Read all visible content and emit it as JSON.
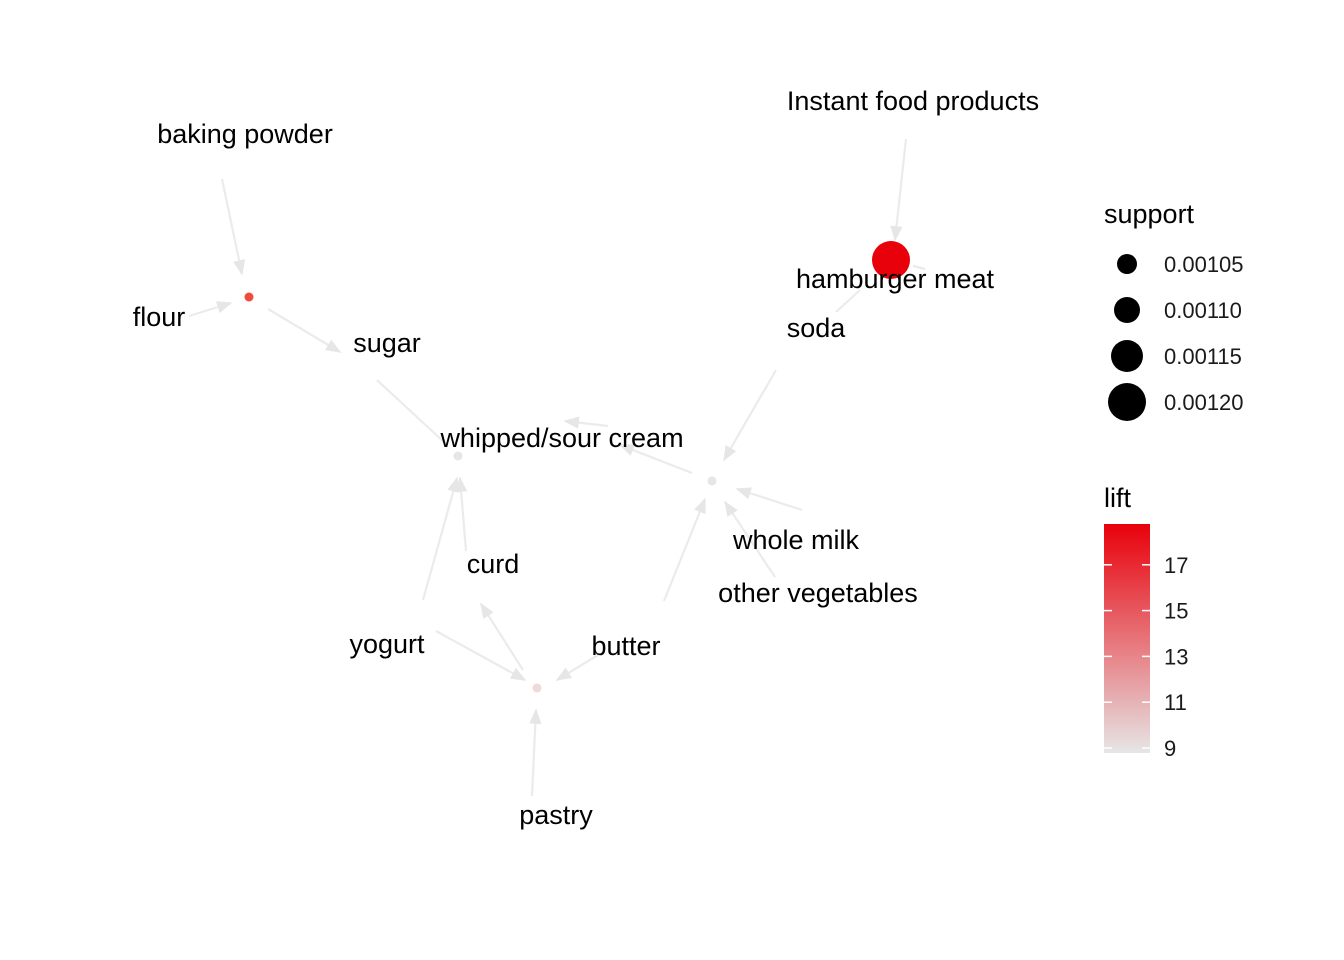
{
  "items": [
    {
      "id": "instant_food",
      "label": "Instant food products"
    },
    {
      "id": "baking_powder",
      "label": "baking powder"
    },
    {
      "id": "hamburger_meat",
      "label": "hamburger meat"
    },
    {
      "id": "soda",
      "label": "soda"
    },
    {
      "id": "flour",
      "label": "flour"
    },
    {
      "id": "sugar",
      "label": "sugar"
    },
    {
      "id": "whipped_sour_cream",
      "label": "whipped/sour cream"
    },
    {
      "id": "whole_milk",
      "label": "whole milk"
    },
    {
      "id": "curd",
      "label": "curd"
    },
    {
      "id": "other_vegetables",
      "label": "other vegetables"
    },
    {
      "id": "yogurt",
      "label": "yogurt"
    },
    {
      "id": "butter",
      "label": "butter"
    },
    {
      "id": "pastry",
      "label": "pastry"
    }
  ],
  "rules": [
    {
      "id": "r1",
      "lhs": [
        "Instant food products",
        "soda"
      ],
      "rhs": "hamburger meat",
      "support": 0.0012,
      "lift": 19.0,
      "color": "#e8000b"
    },
    {
      "id": "r2",
      "lhs": [
        "baking powder",
        "flour"
      ],
      "rhs": "sugar",
      "support": 0.00101,
      "lift": 16.5,
      "color": "#f14a3a"
    },
    {
      "id": "r3",
      "lhs": [
        "sugar",
        "whole milk"
      ],
      "rhs": "whipped/sour cream",
      "support": 0.00101,
      "lift": 9.0,
      "color": "#e6e6e6"
    },
    {
      "id": "r4",
      "lhs": [
        "soda",
        "whole milk",
        "other vegetables",
        "butter"
      ],
      "rhs": "whipped/sour cream",
      "support": 0.00101,
      "lift": 9.0,
      "color": "#e6e6e6"
    },
    {
      "id": "r5",
      "lhs": [
        "yogurt",
        "butter",
        "pastry"
      ],
      "rhs": "curd",
      "support": 0.00101,
      "lift": 9.8,
      "color": "#eedada"
    }
  ],
  "legend": {
    "support": {
      "title": "support",
      "entries": [
        "0.00105",
        "0.00110",
        "0.00115",
        "0.00120"
      ]
    },
    "lift": {
      "title": "lift",
      "ticks": [
        "17",
        "15",
        "13",
        "11",
        "9"
      ],
      "range": [
        9,
        19
      ],
      "color_low": "#e6e6e6",
      "color_high": "#e8000b"
    }
  }
}
